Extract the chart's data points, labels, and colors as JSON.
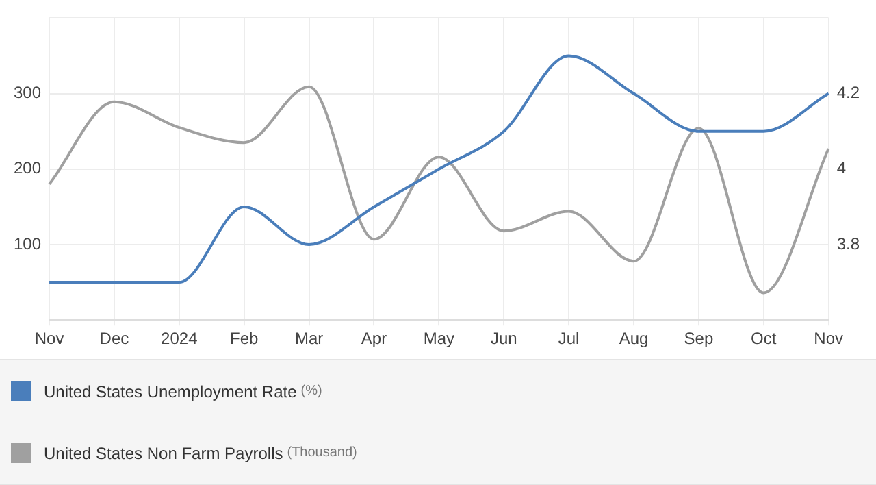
{
  "chart_data": {
    "type": "line",
    "categories": [
      "Nov",
      "Dec",
      "2024",
      "Feb",
      "Mar",
      "Apr",
      "May",
      "Jun",
      "Jul",
      "Aug",
      "Sep",
      "Oct",
      "Nov"
    ],
    "series": [
      {
        "name": "United States Unemployment Rate (%)",
        "color": "#4a7ebb",
        "axis": "y2",
        "values": [
          3.7,
          3.7,
          3.7,
          3.9,
          3.8,
          3.9,
          4.0,
          4.1,
          4.3,
          4.2,
          4.1,
          4.1,
          4.2
        ]
      },
      {
        "name": "United States Non Farm Payrolls (Thousand)",
        "color": "#a0a0a0",
        "values": [
          180,
          289,
          255,
          235,
          309,
          107,
          216,
          118,
          144,
          78,
          254,
          36,
          227
        ]
      }
    ],
    "ylim": [
      0,
      400
    ],
    "yticks": [
      {
        "value": 0,
        "label": null
      },
      100,
      200,
      300,
      {
        "value": 400,
        "label": null
      }
    ],
    "y2lim": [
      3.6,
      4.4
    ],
    "y2ticks": [
      3.8,
      4,
      4.2
    ],
    "grid": true,
    "legend": "bottom",
    "marker": "none"
  }
}
